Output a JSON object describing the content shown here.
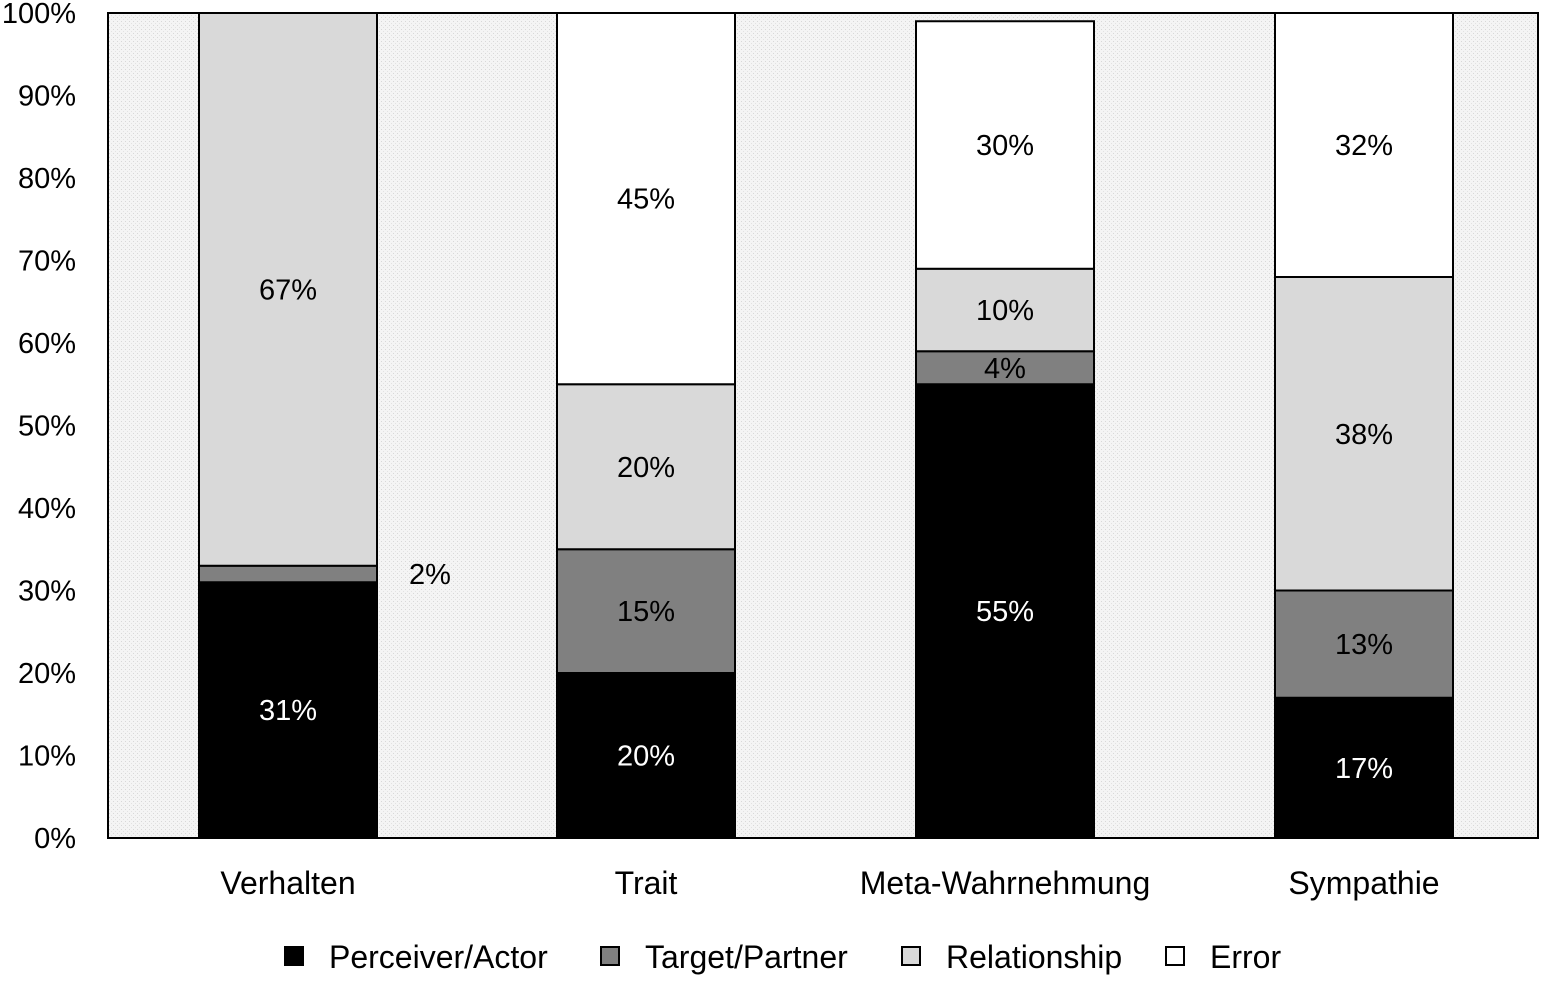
{
  "chart_data": {
    "type": "bar",
    "stacked": true,
    "categories": [
      "Verhalten",
      "Trait",
      "Meta-Wahrnehmung",
      "Sympathie"
    ],
    "series": [
      {
        "name": "Perceiver/Actor",
        "values": [
          31,
          20,
          55,
          17
        ],
        "labels": [
          "31%",
          "20%",
          "55%",
          "17%"
        ],
        "color": "#000000",
        "label_color": "#ffffff"
      },
      {
        "name": "Target/Partner",
        "values": [
          2,
          15,
          4,
          13
        ],
        "labels": [
          "2%",
          "15%",
          "4%",
          "13%"
        ],
        "color": "#808080",
        "label_color": "#000000"
      },
      {
        "name": "Relationship",
        "values": [
          67,
          20,
          10,
          38
        ],
        "labels": [
          "67%",
          "20%",
          "10%",
          "38%"
        ],
        "color": "#d9d9d9",
        "label_color": "#000000"
      },
      {
        "name": "Error",
        "values": [
          0,
          45,
          30,
          32
        ],
        "labels": [
          "",
          "45%",
          "30%",
          "32%"
        ],
        "color": "#ffffff",
        "label_color": "#000000"
      }
    ],
    "yticks": [
      "0%",
      "10%",
      "20%",
      "30%",
      "40%",
      "50%",
      "60%",
      "70%",
      "80%",
      "90%",
      "100%"
    ],
    "ylim": [
      0,
      100
    ],
    "plot_background": "#f2f2f2",
    "legend_position": "bottom",
    "title": "",
    "xlabel": "",
    "ylabel": ""
  }
}
